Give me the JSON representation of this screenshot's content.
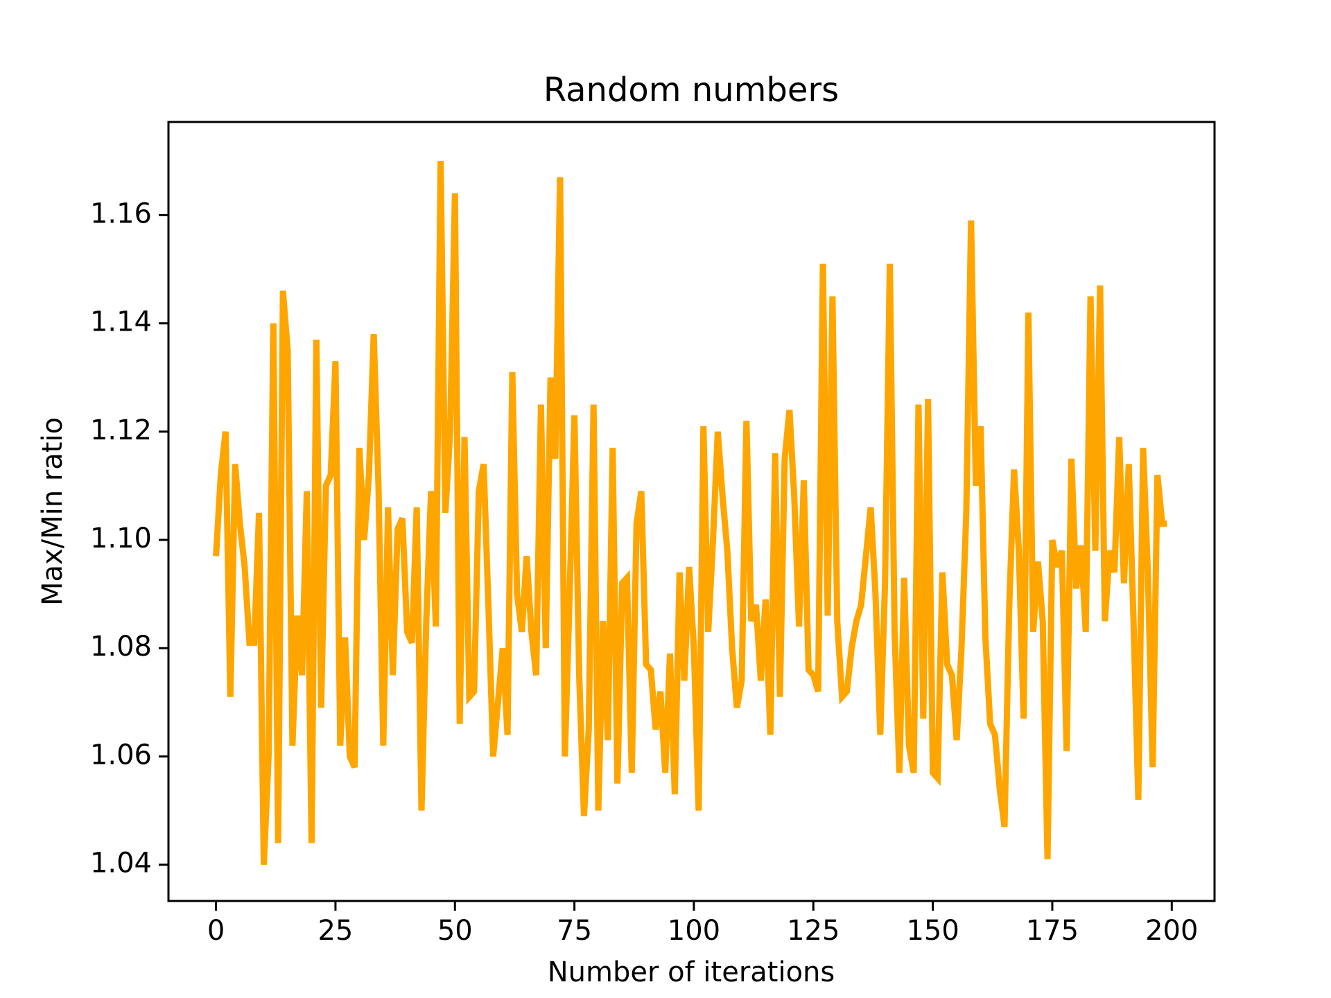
{
  "chart_data": {
    "type": "line",
    "title": "Random numbers",
    "x_label": "Number of iterations",
    "y_label": "Max/Min ratio",
    "xlim": [
      -9.95,
      208.95
    ],
    "ylim": [
      1.0333,
      1.1772
    ],
    "xticks": [
      0,
      25,
      50,
      75,
      100,
      125,
      150,
      175,
      200
    ],
    "yticks": [
      1.04,
      1.06,
      1.08,
      {
        "value": 1.1,
        "label": "1.10"
      },
      1.12,
      1.14,
      1.16
    ],
    "series": [
      {
        "color": "#ffa500",
        "x": [
          0,
          1,
          2,
          3,
          4,
          5,
          6,
          7,
          8,
          9,
          10,
          11,
          12,
          13,
          14,
          15,
          16,
          17,
          18,
          19,
          20,
          21,
          22,
          23,
          24,
          25,
          26,
          27,
          28,
          29,
          30,
          31,
          32,
          33,
          34,
          35,
          36,
          37,
          38,
          39,
          40,
          41,
          42,
          43,
          44,
          45,
          46,
          47,
          48,
          49,
          50,
          51,
          52,
          53,
          54,
          55,
          56,
          57,
          58,
          59,
          60,
          61,
          62,
          63,
          64,
          65,
          66,
          67,
          68,
          69,
          70,
          71,
          72,
          73,
          74,
          75,
          76,
          77,
          78,
          79,
          80,
          81,
          82,
          83,
          84,
          85,
          86,
          87,
          88,
          89,
          90,
          91,
          92,
          93,
          94,
          95,
          96,
          97,
          98,
          99,
          100,
          101,
          102,
          103,
          104,
          105,
          106,
          107,
          108,
          109,
          110,
          111,
          112,
          113,
          114,
          115,
          116,
          117,
          118,
          119,
          120,
          121,
          122,
          123,
          124,
          125,
          126,
          127,
          128,
          129,
          130,
          131,
          132,
          133,
          134,
          135,
          136,
          137,
          138,
          139,
          140,
          141,
          142,
          143,
          144,
          145,
          146,
          147,
          148,
          149,
          150,
          151,
          152,
          153,
          154,
          155,
          156,
          157,
          158,
          159,
          160,
          161,
          162,
          163,
          164,
          165,
          166,
          167,
          168,
          169,
          170,
          171,
          172,
          173,
          174,
          175,
          176,
          177,
          178,
          179,
          180,
          181,
          182,
          183,
          184,
          185,
          186,
          187,
          188,
          189,
          190,
          191,
          192,
          193,
          194,
          195,
          196,
          197,
          198,
          199
        ],
        "values": [
          1.097,
          1.112,
          1.12,
          1.071,
          1.114,
          1.103,
          1.095,
          1.081,
          1.081,
          1.105,
          1.04,
          1.06,
          1.14,
          1.044,
          1.146,
          1.135,
          1.062,
          1.086,
          1.075,
          1.109,
          1.044,
          1.137,
          1.069,
          1.11,
          1.112,
          1.133,
          1.062,
          1.082,
          1.06,
          1.058,
          1.117,
          1.1,
          1.112,
          1.138,
          1.11,
          1.062,
          1.106,
          1.075,
          1.102,
          1.104,
          1.083,
          1.081,
          1.106,
          1.05,
          1.085,
          1.109,
          1.084,
          1.17,
          1.105,
          1.12,
          1.164,
          1.066,
          1.119,
          1.071,
          1.072,
          1.109,
          1.114,
          1.088,
          1.06,
          1.07,
          1.08,
          1.064,
          1.131,
          1.09,
          1.083,
          1.097,
          1.083,
          1.075,
          1.125,
          1.08,
          1.13,
          1.115,
          1.167,
          1.06,
          1.09,
          1.123,
          1.075,
          1.049,
          1.065,
          1.125,
          1.05,
          1.085,
          1.063,
          1.117,
          1.055,
          1.092,
          1.093,
          1.057,
          1.103,
          1.109,
          1.077,
          1.076,
          1.065,
          1.072,
          1.057,
          1.079,
          1.053,
          1.094,
          1.074,
          1.095,
          1.08,
          1.05,
          1.121,
          1.083,
          1.1,
          1.12,
          1.108,
          1.098,
          1.08,
          1.069,
          1.074,
          1.122,
          1.085,
          1.088,
          1.074,
          1.089,
          1.064,
          1.116,
          1.071,
          1.115,
          1.124,
          1.108,
          1.084,
          1.111,
          1.076,
          1.075,
          1.072,
          1.151,
          1.086,
          1.145,
          1.085,
          1.071,
          1.072,
          1.08,
          1.085,
          1.088,
          1.097,
          1.106,
          1.09,
          1.064,
          1.092,
          1.151,
          1.083,
          1.057,
          1.093,
          1.062,
          1.057,
          1.125,
          1.067,
          1.126,
          1.057,
          1.056,
          1.094,
          1.077,
          1.075,
          1.063,
          1.08,
          1.105,
          1.159,
          1.11,
          1.121,
          1.082,
          1.066,
          1.064,
          1.054,
          1.047,
          1.088,
          1.113,
          1.098,
          1.067,
          1.142,
          1.083,
          1.096,
          1.085,
          1.041,
          1.1,
          1.095,
          1.098,
          1.061,
          1.115,
          1.091,
          1.099,
          1.083,
          1.145,
          1.098,
          1.147,
          1.085,
          1.098,
          1.094,
          1.119,
          1.092,
          1.114,
          1.085,
          1.052,
          1.117,
          1.094,
          1.058,
          1.112,
          1.103,
          1.103
        ]
      }
    ]
  }
}
